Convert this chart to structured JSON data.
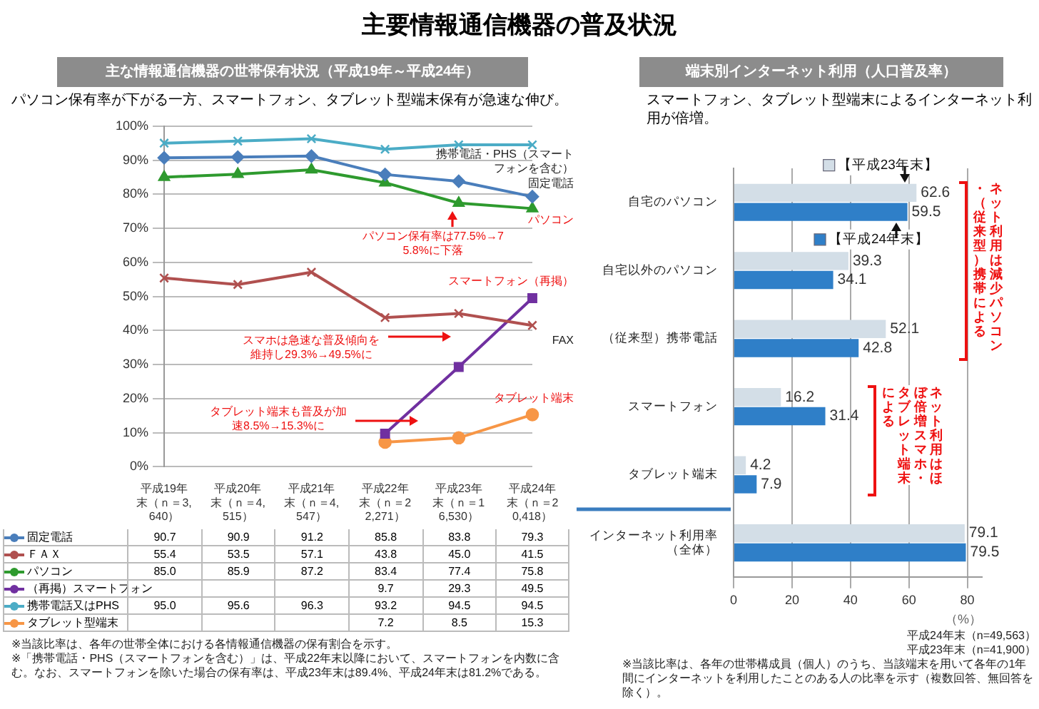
{
  "chart_data": [
    {
      "type": "line",
      "title": "主な情報通信機器の世帯保有状況（平成19年～平成24年）",
      "subtitle": "パソコン保有率が下がる一方、スマートフォン、タブレット型端末保有が急速な伸び。",
      "categories": [
        "平成19年末（ｎ＝3,640）",
        "平成20年末（ｎ＝4,515）",
        "平成21年末（ｎ＝4,547）",
        "平成22年末（ｎ＝22,271）",
        "平成23年末（ｎ＝16,530）",
        "平成24年末（ｎ＝20,418）"
      ],
      "series": [
        {
          "name": "固定電話",
          "color": "#4a7ebb",
          "marker": "diamond",
          "values": [
            90.7,
            90.9,
            91.2,
            85.8,
            83.8,
            79.3
          ],
          "value_labels": [
            "90.7",
            "90.9",
            "91.2",
            "85.8",
            "83.8",
            "79.3"
          ]
        },
        {
          "name": "ＦＡＸ",
          "color": "#b0504f",
          "marker": "cross",
          "values": [
            55.4,
            53.5,
            57.1,
            43.8,
            45.0,
            41.5
          ],
          "value_labels": [
            "55.4",
            "53.5",
            "57.1",
            "43.8",
            "45.0",
            "41.5"
          ]
        },
        {
          "name": "パソコン",
          "color": "#2e9a2e",
          "marker": "triangle",
          "values": [
            85.0,
            85.9,
            87.2,
            83.4,
            77.4,
            75.8
          ],
          "value_labels": [
            "85.0",
            "85.9",
            "87.2",
            "83.4",
            "77.4",
            "75.8"
          ]
        },
        {
          "name": "（再掲）スマートフォン",
          "color": "#7030a0",
          "marker": "square",
          "values": [
            null,
            null,
            null,
            9.7,
            29.3,
            49.5
          ],
          "value_labels": [
            null,
            null,
            null,
            "9.7",
            "29.3",
            "49.5"
          ]
        },
        {
          "name": "携帯電話又はPHS",
          "color": "#4bacc6",
          "marker": "cross",
          "values": [
            95.0,
            95.6,
            96.3,
            93.2,
            94.5,
            94.5
          ],
          "value_labels": [
            "95.0",
            "95.6",
            "96.3",
            "93.2",
            "94.5",
            "94.5"
          ]
        },
        {
          "name": "タブレット型端末",
          "color": "#f79646",
          "marker": "circle",
          "values": [
            null,
            null,
            null,
            7.2,
            8.5,
            15.3
          ],
          "value_labels": [
            null,
            null,
            null,
            "7.2",
            "8.5",
            "15.3"
          ]
        }
      ],
      "ylim": [
        0,
        100
      ],
      "yticks": [
        {
          "value": 0,
          "label": "0%"
        },
        {
          "value": 10,
          "label": "10%"
        },
        {
          "value": 20,
          "label": "20%"
        },
        {
          "value": 30,
          "label": "30%"
        },
        {
          "value": 40,
          "label": "40%"
        },
        {
          "value": 50,
          "label": "50%"
        },
        {
          "value": 60,
          "label": "60%"
        },
        {
          "value": 70,
          "label": "70%"
        },
        {
          "value": 80,
          "label": "80%"
        },
        {
          "value": 90,
          "label": "90%"
        },
        {
          "value": 100,
          "label": "100%"
        }
      ],
      "grid": "y",
      "legend": "bottom",
      "annotations": [
        "主要情報通信機器の普及状況",
        "携帯電話・PHS（スマートフォンを含む）",
        "固定電話",
        "パソコン",
        "スマートフォン（再掲）",
        "FAX",
        "タブレット端末",
        "パソコン保有率は77.5%→75.8%に下落",
        "スマホは急速な普及傾向を維持し29.3%→49.5%に",
        "タブレット端末も普及が加速8.5%→15.3%に",
        "※当該比率は、各年の世帯全体における各情報通信機器の保有割合を示す。",
        "※「携帯電話・PHS（スマートフォンを含む）」は、平成22年末以降において、スマートフォンを内数に含む。なお、スマートフォンを除いた場合の保有率は、平成23年末は89.4%、平成24年末は81.2%である。"
      ]
    },
    {
      "type": "bar",
      "orientation": "horizontal",
      "title": "端末別インターネット利用（人口普及率）",
      "subtitle": "スマートフォン、タブレット型端末によるインターネット利用が倍増。",
      "categories": [
        "自宅のパソコン",
        "自宅以外のパソコン",
        "（従来型）携帯電話",
        "スマートフォン",
        "タブレット端末",
        "インターネット利用率（全体）"
      ],
      "series": [
        {
          "name": "【平成23年末】",
          "color": "#d3dee7",
          "values": [
            62.6,
            39.3,
            52.1,
            16.2,
            4.2,
            79.1
          ]
        },
        {
          "name": "【平成24年末】",
          "color": "#2f7fc8",
          "values": [
            59.5,
            34.1,
            42.8,
            31.4,
            7.9,
            79.5
          ]
        }
      ],
      "xlim": [
        0,
        85
      ],
      "xticks": [
        0,
        20,
        40,
        60,
        80
      ],
      "xlabel": "（%）",
      "grid": "x",
      "legend": "top",
      "data_labels": true,
      "annotations": [
        "ネット利用は減少パソコン・（従来型）携帯による",
        "ネット利用はほぼ倍増スマホ・タブレット端末による",
        "平成24年末（n=49,563）",
        "平成23年末（n=41,900）",
        "※当該比率は、各年の世帯構成員（個人）のうち、当該端末を用いて各年の1年間にインターネットを利用したことのある人の比率を示す（複数回答、無回答を除く）。"
      ]
    }
  ]
}
